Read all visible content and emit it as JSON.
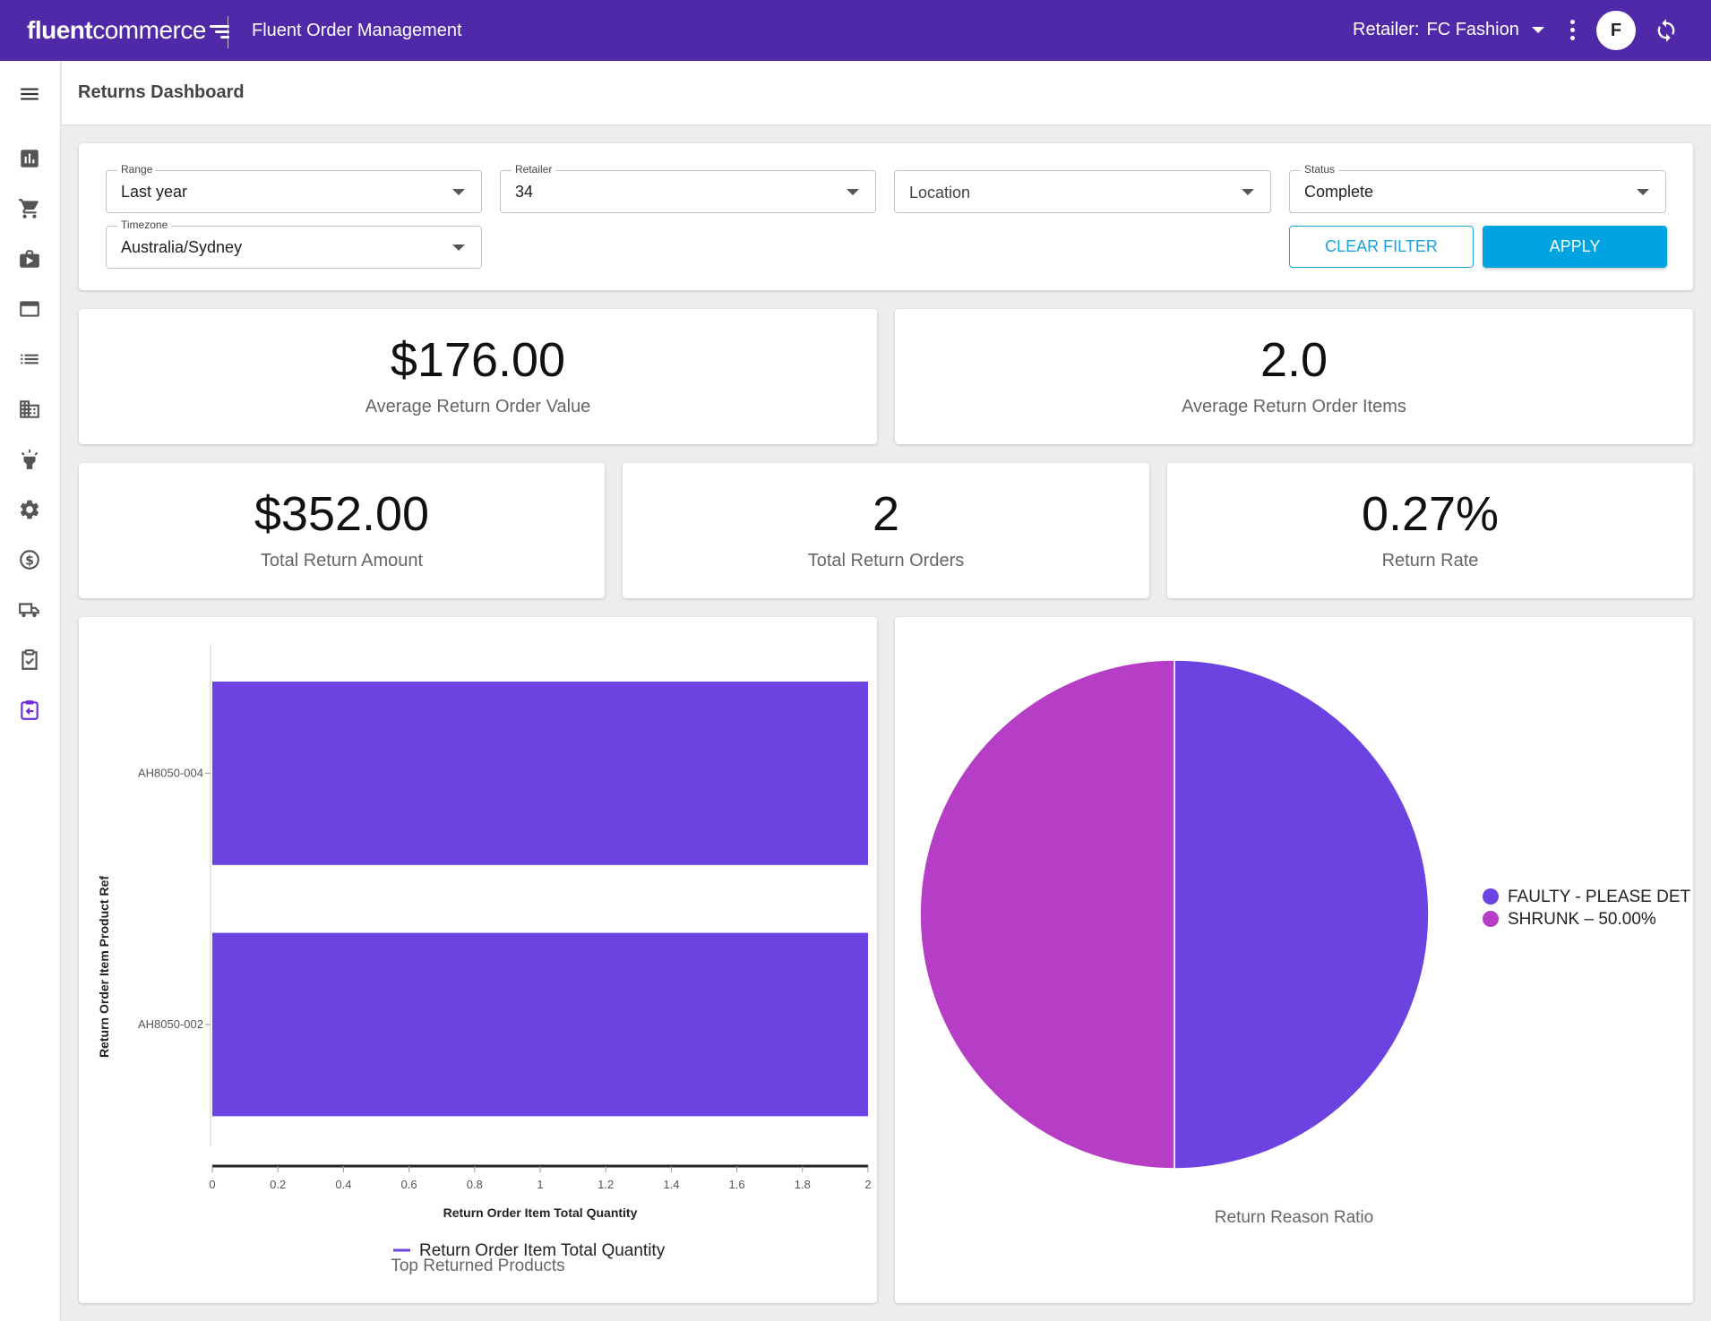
{
  "topbar": {
    "logo_bold": "fluent",
    "logo_light": "commerce",
    "app_title": "Fluent Order Management",
    "retailer_label": "Retailer:",
    "retailer_value": "FC Fashion",
    "avatar_initial": "F"
  },
  "page": {
    "title": "Returns Dashboard"
  },
  "filters": {
    "range": {
      "label": "Range",
      "value": "Last year"
    },
    "retailer": {
      "label": "Retailer",
      "value": "34"
    },
    "location": {
      "placeholder": "Location"
    },
    "status": {
      "label": "Status",
      "value": "Complete"
    },
    "timezone": {
      "label": "Timezone",
      "value": "Australia/Sydney"
    },
    "clear_label": "CLEAR FILTER",
    "apply_label": "APPLY"
  },
  "metrics": {
    "avg_order_value": {
      "value": "$176.00",
      "label": "Average Return Order Value"
    },
    "avg_order_items": {
      "value": "2.0",
      "label": "Average Return Order Items"
    },
    "total_amount": {
      "value": "$352.00",
      "label": "Total Return Amount"
    },
    "total_orders": {
      "value": "2",
      "label": "Total Return Orders"
    },
    "return_rate": {
      "value": "0.27%",
      "label": "Return Rate"
    }
  },
  "colors": {
    "purple": "#6c42e0",
    "magenta": "#b63dc6",
    "topbar": "#5029a8",
    "accent": "#00a4e0"
  },
  "chart_data": [
    {
      "type": "bar",
      "orientation": "horizontal",
      "title": "Top Returned Products",
      "xlabel": "Return Order Item Total Quantity",
      "ylabel": "Return Order Item Product Ref",
      "categories": [
        "AH8050-004",
        "AH8050-002"
      ],
      "series": [
        {
          "name": "Return Order Item Total Quantity",
          "values": [
            2,
            2
          ],
          "color": "#6c42e0"
        }
      ],
      "xlim": [
        0,
        2
      ],
      "xticks": [
        "0",
        "0.2",
        "0.4",
        "0.6",
        "0.8",
        "1",
        "1.2",
        "1.4",
        "1.6",
        "1.8",
        "2"
      ],
      "legend": "bottom"
    },
    {
      "type": "pie",
      "title": "Return Reason Ratio",
      "slices": [
        {
          "label": "FAULTY - PLEASE DET",
          "value": 50,
          "color": "#6c42e0"
        },
        {
          "label": "SHRUNK – 50.00%",
          "value": 50,
          "color": "#b63dc6"
        }
      ],
      "legend": "right"
    }
  ]
}
